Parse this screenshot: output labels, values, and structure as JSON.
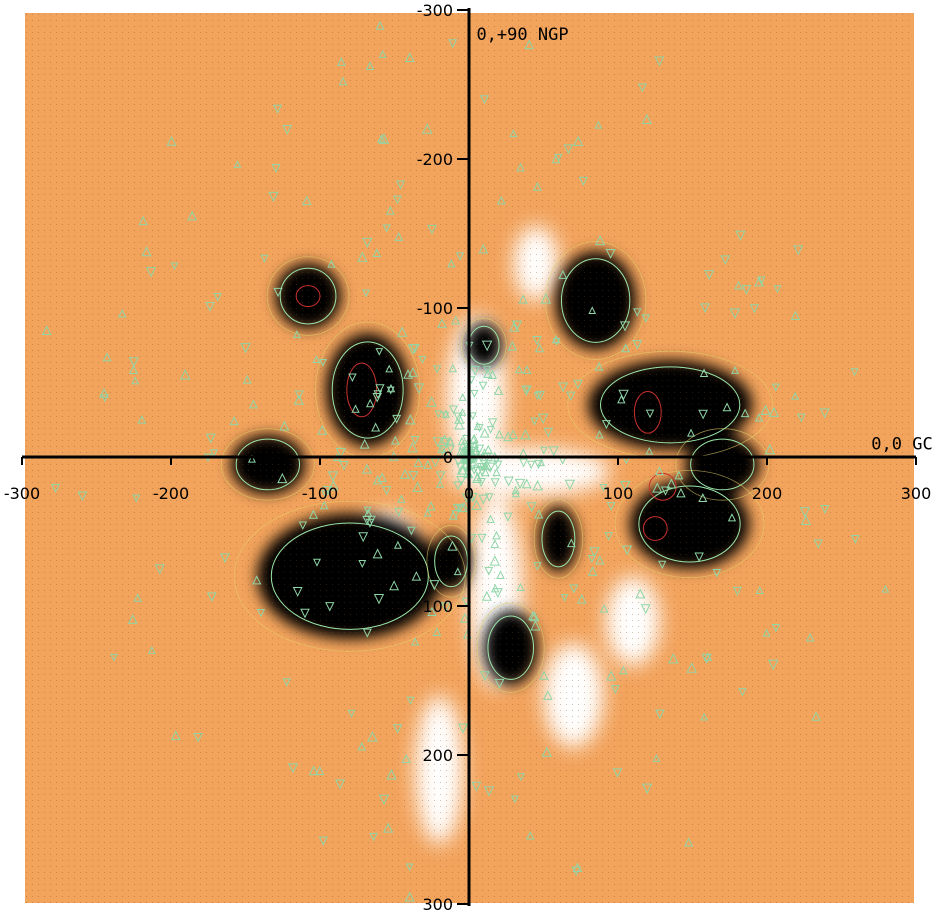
{
  "chart_data": {
    "type": "heatmap",
    "title": "",
    "xlabel": "",
    "ylabel": "",
    "xlim": [
      -300,
      300
    ],
    "ylim": [
      -300,
      300
    ],
    "y_axis_inverted": true,
    "x_ticks": [
      -300,
      -200,
      -100,
      0,
      100,
      200,
      300
    ],
    "x_tick_labels": [
      "-300",
      "-200",
      "-100",
      "0",
      "100",
      "200",
      "300"
    ],
    "y_ticks": [
      -300,
      -200,
      -100,
      0,
      100,
      200,
      300
    ],
    "y_tick_labels": [
      "-300",
      "-200",
      "-100",
      "0",
      "100",
      "200",
      "300"
    ],
    "annotations": [
      {
        "text": "0,+90 NGP",
        "x": 5,
        "y": -280
      },
      {
        "text": "0,0 GC",
        "x": 270,
        "y": -5
      }
    ],
    "grid": false,
    "colors": {
      "background": "#f2a35c",
      "low_density": "#000000",
      "high_density": "#ffffff",
      "contour": "#9be6a8",
      "contour_outer": "#e6d36a",
      "contour_inner": "#c8322e",
      "markers": "#8fd6a8"
    },
    "dark_regions": [
      {
        "x": -108,
        "y": -108,
        "rx": 22,
        "ry": 22
      },
      {
        "x": -68,
        "y": -45,
        "rx": 28,
        "ry": 38
      },
      {
        "x": -135,
        "y": 5,
        "rx": 25,
        "ry": 20
      },
      {
        "x": -80,
        "y": 80,
        "rx": 62,
        "ry": 42
      },
      {
        "x": -12,
        "y": 70,
        "rx": 13,
        "ry": 20
      },
      {
        "x": 10,
        "y": -75,
        "rx": 12,
        "ry": 15
      },
      {
        "x": 85,
        "y": -105,
        "rx": 27,
        "ry": 33
      },
      {
        "x": 135,
        "y": -35,
        "rx": 55,
        "ry": 30
      },
      {
        "x": 170,
        "y": 5,
        "rx": 25,
        "ry": 20
      },
      {
        "x": 148,
        "y": 45,
        "rx": 40,
        "ry": 30
      },
      {
        "x": 60,
        "y": 55,
        "rx": 13,
        "ry": 22
      },
      {
        "x": 28,
        "y": 128,
        "rx": 18,
        "ry": 25
      }
    ],
    "white_regions": [
      {
        "x": 40,
        "y": 10,
        "rx": 55,
        "ry": 16
      },
      {
        "x": 5,
        "y": -40,
        "rx": 20,
        "ry": 55
      },
      {
        "x": 18,
        "y": 90,
        "rx": 18,
        "ry": 65
      },
      {
        "x": -55,
        "y": 55,
        "rx": 18,
        "ry": 18
      },
      {
        "x": 110,
        "y": 110,
        "rx": 18,
        "ry": 30
      },
      {
        "x": -20,
        "y": 210,
        "rx": 16,
        "ry": 50
      },
      {
        "x": 70,
        "y": 160,
        "rx": 20,
        "ry": 35
      },
      {
        "x": 45,
        "y": -130,
        "rx": 15,
        "ry": 25
      }
    ],
    "inner_contours": [
      {
        "x": -108,
        "y": -108,
        "rx": 8,
        "ry": 7
      },
      {
        "x": -72,
        "y": -45,
        "rx": 10,
        "ry": 18
      },
      {
        "x": 120,
        "y": -30,
        "rx": 9,
        "ry": 14
      },
      {
        "x": 130,
        "y": 20,
        "rx": 9,
        "ry": 9
      },
      {
        "x": 125,
        "y": 48,
        "rx": 8,
        "ry": 8
      }
    ]
  }
}
